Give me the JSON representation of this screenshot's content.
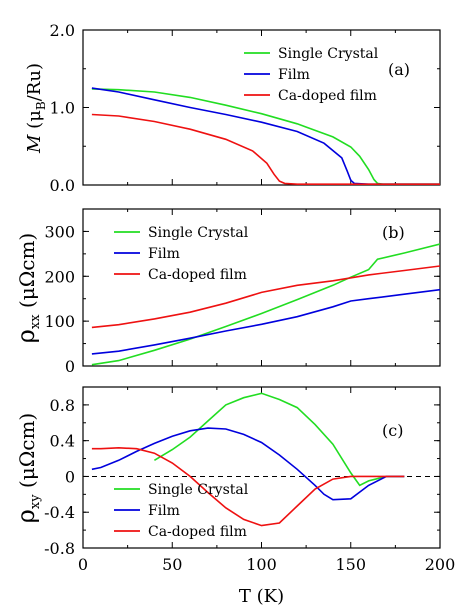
{
  "chart_data": [
    {
      "panel_label": "(a)",
      "type": "line",
      "ylabel_parts": {
        "sym": "M",
        "open": " (μ",
        "sub": "B",
        "close": "/Ru)"
      },
      "xlim": [
        0,
        200
      ],
      "ylim": [
        0,
        2
      ],
      "yticks": [
        "0.0",
        "1.0",
        "2.0"
      ],
      "ytick_values": [
        0,
        1,
        2
      ],
      "legend": "top-right",
      "series": [
        {
          "name": "Single Crystal",
          "color": "#22dd22",
          "x": [
            5,
            20,
            40,
            60,
            80,
            100,
            120,
            140,
            150,
            155,
            160,
            163,
            165,
            168,
            200
          ],
          "y": [
            1.24,
            1.23,
            1.2,
            1.13,
            1.03,
            0.92,
            0.79,
            0.62,
            0.49,
            0.37,
            0.2,
            0.07,
            0.02,
            0.01,
            0.01
          ]
        },
        {
          "name": "Film",
          "color": "#0000dd",
          "x": [
            5,
            20,
            40,
            60,
            80,
            100,
            120,
            135,
            145,
            148,
            150,
            152,
            160,
            200
          ],
          "y": [
            1.25,
            1.2,
            1.1,
            1.0,
            0.91,
            0.81,
            0.69,
            0.54,
            0.35,
            0.18,
            0.06,
            0.02,
            0.01,
            0.01
          ]
        },
        {
          "name": "Ca-doped film",
          "color": "#ee1111",
          "x": [
            5,
            20,
            40,
            60,
            80,
            95,
            103,
            107,
            110,
            113,
            120,
            200
          ],
          "y": [
            0.91,
            0.89,
            0.82,
            0.72,
            0.59,
            0.44,
            0.28,
            0.14,
            0.05,
            0.02,
            0.01,
            0.01
          ]
        }
      ]
    },
    {
      "panel_label": "(b)",
      "type": "line",
      "ylabel_parts": {
        "sym": "ρ",
        "sub": "xx",
        "rest": " (μΩcm)"
      },
      "xlim": [
        0,
        200
      ],
      "ylim": [
        0,
        350
      ],
      "yticks": [
        "0",
        "100",
        "200",
        "300"
      ],
      "ytick_values": [
        0,
        100,
        200,
        300
      ],
      "legend": "top-left",
      "series": [
        {
          "name": "Single Crystal",
          "color": "#22dd22",
          "x": [
            5,
            20,
            40,
            60,
            80,
            100,
            120,
            140,
            150,
            160,
            165,
            180,
            200
          ],
          "y": [
            3,
            12,
            35,
            60,
            88,
            117,
            148,
            180,
            198,
            215,
            238,
            252,
            272
          ]
        },
        {
          "name": "Film",
          "color": "#0000dd",
          "x": [
            5,
            20,
            40,
            60,
            80,
            100,
            120,
            140,
            150,
            160,
            180,
            200
          ],
          "y": [
            27,
            33,
            47,
            62,
            78,
            93,
            110,
            132,
            145,
            150,
            160,
            170
          ]
        },
        {
          "name": "Ca-doped film",
          "color": "#ee1111",
          "x": [
            5,
            20,
            40,
            60,
            80,
            100,
            120,
            140,
            160,
            180,
            200
          ],
          "y": [
            86,
            92,
            105,
            120,
            140,
            164,
            180,
            190,
            203,
            213,
            223
          ]
        }
      ]
    },
    {
      "panel_label": "(c)",
      "type": "line",
      "ylabel_parts": {
        "sym": "ρ",
        "sub": "xy",
        "rest": " (μΩcm)"
      },
      "xlabel": "T (K)",
      "xlim": [
        0,
        200
      ],
      "ylim": [
        -0.8,
        1.0
      ],
      "xticks": [
        "0",
        "50",
        "100",
        "150",
        "200"
      ],
      "xtick_values": [
        0,
        50,
        100,
        150,
        200
      ],
      "yticks": [
        "0.8",
        "0.4",
        "0",
        "-0.4",
        "-0.8"
      ],
      "ytick_values": [
        0.8,
        0.4,
        0,
        -0.4,
        -0.8
      ],
      "zero_line": true,
      "legend": "bottom-left",
      "series": [
        {
          "name": "Single Crystal",
          "color": "#22dd22",
          "x": [
            40,
            50,
            60,
            70,
            80,
            90,
            100,
            110,
            120,
            130,
            140,
            150,
            155,
            160,
            170,
            180
          ],
          "y": [
            0.18,
            0.3,
            0.44,
            0.62,
            0.8,
            0.88,
            0.93,
            0.86,
            0.77,
            0.58,
            0.36,
            0.04,
            -0.1,
            -0.05,
            0.0,
            0.0
          ]
        },
        {
          "name": "Film",
          "color": "#0000dd",
          "x": [
            5,
            10,
            20,
            30,
            40,
            50,
            60,
            70,
            80,
            90,
            100,
            110,
            120,
            130,
            135,
            140,
            150,
            160,
            170,
            180
          ],
          "y": [
            0.08,
            0.1,
            0.18,
            0.28,
            0.37,
            0.45,
            0.51,
            0.54,
            0.53,
            0.47,
            0.38,
            0.24,
            0.08,
            -0.1,
            -0.2,
            -0.26,
            -0.25,
            -0.1,
            0.0,
            0.0
          ]
        },
        {
          "name": "Ca-doped film",
          "color": "#ee1111",
          "x": [
            5,
            10,
            20,
            30,
            40,
            50,
            60,
            70,
            80,
            90,
            100,
            110,
            120,
            130,
            140,
            150,
            160,
            170,
            180
          ],
          "y": [
            0.31,
            0.31,
            0.32,
            0.31,
            0.26,
            0.15,
            0.0,
            -0.18,
            -0.35,
            -0.48,
            -0.55,
            -0.52,
            -0.33,
            -0.14,
            -0.03,
            0.0,
            0.0,
            0.0,
            0.0
          ]
        }
      ]
    }
  ]
}
